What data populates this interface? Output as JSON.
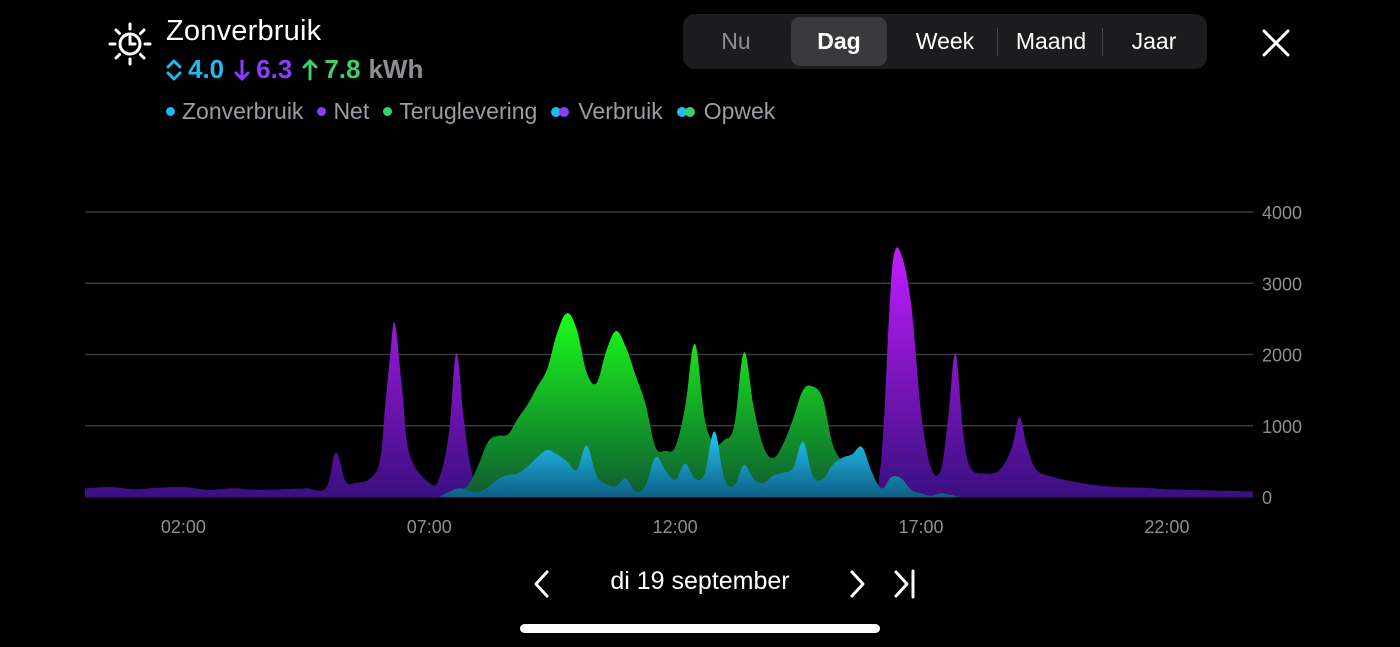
{
  "header": {
    "title": "Zonverbruik",
    "stats": {
      "self": "4.0",
      "grid": "6.3",
      "export": "7.8",
      "unit": "kWh"
    }
  },
  "legend": [
    {
      "label": "Zonverbruik",
      "kind": "dot",
      "colors": [
        "#22b8f0"
      ]
    },
    {
      "label": "Net",
      "kind": "dot",
      "colors": [
        "#8b3dff"
      ]
    },
    {
      "label": "Teruglevering",
      "kind": "dot",
      "colors": [
        "#3ccf6d"
      ]
    },
    {
      "label": "Verbruik",
      "kind": "dual",
      "colors": [
        "#22b8f0",
        "#8b3dff"
      ]
    },
    {
      "label": "Opwek",
      "kind": "dual",
      "colors": [
        "#22b8f0",
        "#3ccf6d"
      ]
    }
  ],
  "period_tabs": [
    "Nu",
    "Dag",
    "Week",
    "Maand",
    "Jaar"
  ],
  "active_tab": "Dag",
  "date_label": "di 19 september",
  "colors": {
    "self": "#22b8f0",
    "grid": "#8b3dff",
    "export": "#3ccf6d",
    "grid_top": "#c21cff",
    "grid_bottom": "#3a0f80",
    "export_top": "#19ff19",
    "export_bottom": "#0f5a32",
    "self_top": "#22c8f5",
    "self_bottom": "#0d5f86"
  },
  "chart_data": {
    "type": "area",
    "ylim": [
      0,
      4000
    ],
    "yticks": [
      "4000",
      "3000",
      "2000",
      "1000",
      "0"
    ],
    "ytick_values": [
      4000,
      3000,
      2000,
      1000,
      0
    ],
    "xticks": [
      "02:00",
      "07:00",
      "12:00",
      "17:00",
      "22:00"
    ],
    "xtick_values": [
      2,
      7,
      12,
      17,
      22
    ],
    "xlim": [
      0,
      23.75
    ],
    "series": [
      {
        "key": "grid",
        "x": [
          0,
          0.5,
          1,
          1.5,
          2,
          2.5,
          3,
          3.5,
          4,
          4.5,
          4.9,
          5.1,
          5.3,
          5.5,
          5.8,
          6,
          6.1,
          6.2,
          6.3,
          6.45,
          6.6,
          7,
          7.2,
          7.4,
          7.55,
          7.7,
          7.85,
          8,
          8.5,
          9,
          9.5,
          10,
          11,
          12,
          13,
          14,
          15,
          15.5,
          16,
          16.2,
          16.35,
          16.45,
          16.6,
          16.8,
          17,
          17.2,
          17.4,
          17.55,
          17.7,
          17.85,
          18,
          18.3,
          18.6,
          18.85,
          19,
          19.15,
          19.35,
          19.7,
          20,
          20.5,
          21,
          21.5,
          22,
          22.5,
          23,
          23.75
        ],
        "y": [
          120,
          140,
          110,
          130,
          140,
          100,
          120,
          100,
          110,
          120,
          130,
          620,
          220,
          200,
          260,
          520,
          1250,
          1950,
          2440,
          1500,
          600,
          200,
          260,
          900,
          2020,
          1100,
          400,
          200,
          100,
          0,
          0,
          0,
          0,
          0,
          0,
          0,
          0,
          0,
          0,
          600,
          2550,
          3400,
          3400,
          2700,
          1200,
          420,
          380,
          1100,
          2020,
          950,
          420,
          330,
          380,
          700,
          1120,
          720,
          380,
          280,
          230,
          170,
          140,
          130,
          110,
          100,
          90,
          80
        ]
      },
      {
        "key": "export",
        "x": [
          7.3,
          7.6,
          7.8,
          8,
          8.2,
          8.4,
          8.6,
          8.8,
          9,
          9.2,
          9.4,
          9.6,
          9.8,
          10,
          10.2,
          10.4,
          10.6,
          10.8,
          11,
          11.2,
          11.4,
          11.6,
          11.8,
          12,
          12.2,
          12.4,
          12.6,
          12.8,
          13,
          13.2,
          13.4,
          13.6,
          13.8,
          14,
          14.2,
          14.4,
          14.6,
          14.8,
          15,
          15.2,
          15.4,
          15.6,
          15.8,
          16,
          16.2,
          16.4
        ],
        "y": [
          20,
          90,
          180,
          450,
          780,
          860,
          880,
          1100,
          1300,
          1550,
          1800,
          2300,
          2580,
          2350,
          1750,
          1600,
          2050,
          2330,
          2100,
          1700,
          1300,
          700,
          650,
          700,
          1250,
          2150,
          1100,
          750,
          800,
          1000,
          2030,
          1250,
          700,
          550,
          750,
          1100,
          1500,
          1550,
          1380,
          750,
          480,
          200,
          100,
          50,
          20,
          0
        ]
      },
      {
        "key": "self",
        "x": [
          7.2,
          7.4,
          7.6,
          7.8,
          8,
          8.2,
          8.4,
          8.6,
          8.8,
          9,
          9.2,
          9.4,
          9.6,
          9.8,
          10,
          10.2,
          10.4,
          10.6,
          10.8,
          11,
          11.2,
          11.4,
          11.6,
          11.8,
          12,
          12.2,
          12.4,
          12.6,
          12.8,
          13,
          13.2,
          13.4,
          13.6,
          13.8,
          14,
          14.2,
          14.4,
          14.6,
          14.8,
          15,
          15.2,
          15.4,
          15.6,
          15.8,
          16,
          16.2,
          16.4,
          16.6,
          16.8,
          17,
          17.2,
          17.4,
          17.6,
          17.8,
          18,
          18.2,
          18.4,
          18.6,
          18.8
        ],
        "y": [
          0,
          70,
          120,
          90,
          70,
          140,
          250,
          310,
          330,
          430,
          560,
          660,
          600,
          500,
          380,
          720,
          300,
          180,
          150,
          260,
          70,
          160,
          560,
          380,
          240,
          470,
          260,
          330,
          920,
          260,
          160,
          450,
          250,
          200,
          300,
          340,
          410,
          770,
          300,
          250,
          450,
          550,
          600,
          700,
          350,
          120,
          280,
          260,
          100,
          50,
          20,
          50,
          30,
          0,
          0,
          0,
          0,
          0,
          0
        ]
      }
    ]
  }
}
